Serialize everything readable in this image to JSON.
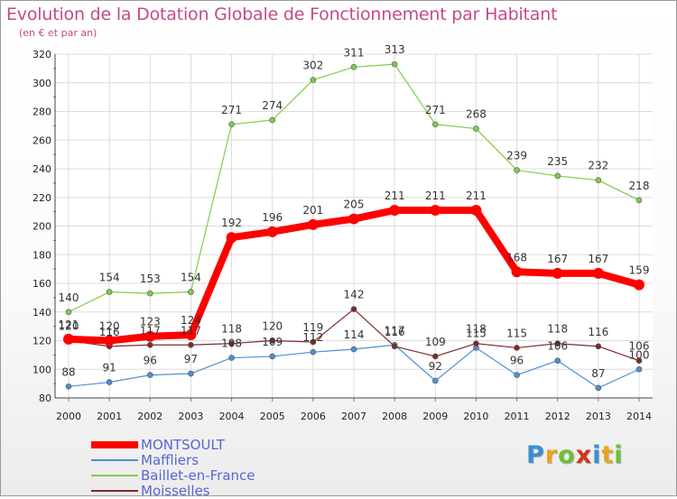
{
  "title": "Evolution de la Dotation Globale de Fonctionnement par Habitant",
  "subtitle": "(en € et par an)",
  "logo": {
    "text": "Proxiti",
    "colors": [
      "#3a8fd6",
      "#e9a21d",
      "#6cbf3c",
      "#d3321e",
      "#3a8fd6",
      "#e9a21d",
      "#6cbf3c"
    ]
  },
  "chart_data": {
    "type": "line",
    "x": [
      "2000",
      "2001",
      "2002",
      "2003",
      "2004",
      "2005",
      "2006",
      "2007",
      "2008",
      "2009",
      "2010",
      "2011",
      "2012",
      "2013",
      "2014"
    ],
    "ylim": [
      80,
      320
    ],
    "yticks": [
      80,
      100,
      120,
      140,
      160,
      180,
      200,
      220,
      240,
      260,
      280,
      300,
      320
    ],
    "grid": true,
    "legend_position": "bottom-left",
    "series": [
      {
        "name": "MONTSOULT",
        "color": "#ff0000",
        "values": [
          121,
          120,
          123,
          124,
          192,
          196,
          201,
          205,
          211,
          211,
          211,
          168,
          167,
          167,
          159
        ],
        "labels": [
          "121",
          "120",
          "123",
          "124",
          "192",
          "196",
          "201",
          "205",
          "211",
          "211",
          "211",
          "168",
          "167",
          "167",
          "159"
        ]
      },
      {
        "name": "Maffliers",
        "color": "#4d8fd1",
        "values": [
          88,
          91,
          96,
          97,
          108,
          109,
          112,
          114,
          117,
          92,
          115,
          96,
          106,
          87,
          100
        ],
        "labels": [
          "88",
          "91",
          "96",
          "97",
          "108",
          "109",
          "112",
          "114",
          "117",
          "92",
          "115",
          "96",
          "106",
          "87",
          "100"
        ]
      },
      {
        "name": "Baillet-en-France",
        "color": "#7fcc4d",
        "values": [
          140,
          154,
          153,
          154,
          271,
          274,
          302,
          311,
          313,
          271,
          268,
          239,
          235,
          232,
          218
        ],
        "labels": [
          "140",
          "154",
          "153",
          "154",
          "271",
          "274",
          "302",
          "311",
          "313",
          "271",
          "268",
          "239",
          "235",
          "232",
          "218"
        ]
      },
      {
        "name": "Moisselles",
        "color": "#7d2a2a",
        "values": [
          120,
          116,
          117,
          117,
          118,
          120,
          119,
          142,
          116,
          109,
          118,
          115,
          118,
          116,
          106
        ],
        "labels": [
          "120",
          "116",
          "117",
          "117",
          "118",
          "120",
          "119",
          "142",
          "116",
          "109",
          "118",
          "115",
          "118",
          "116",
          "106"
        ]
      }
    ]
  }
}
